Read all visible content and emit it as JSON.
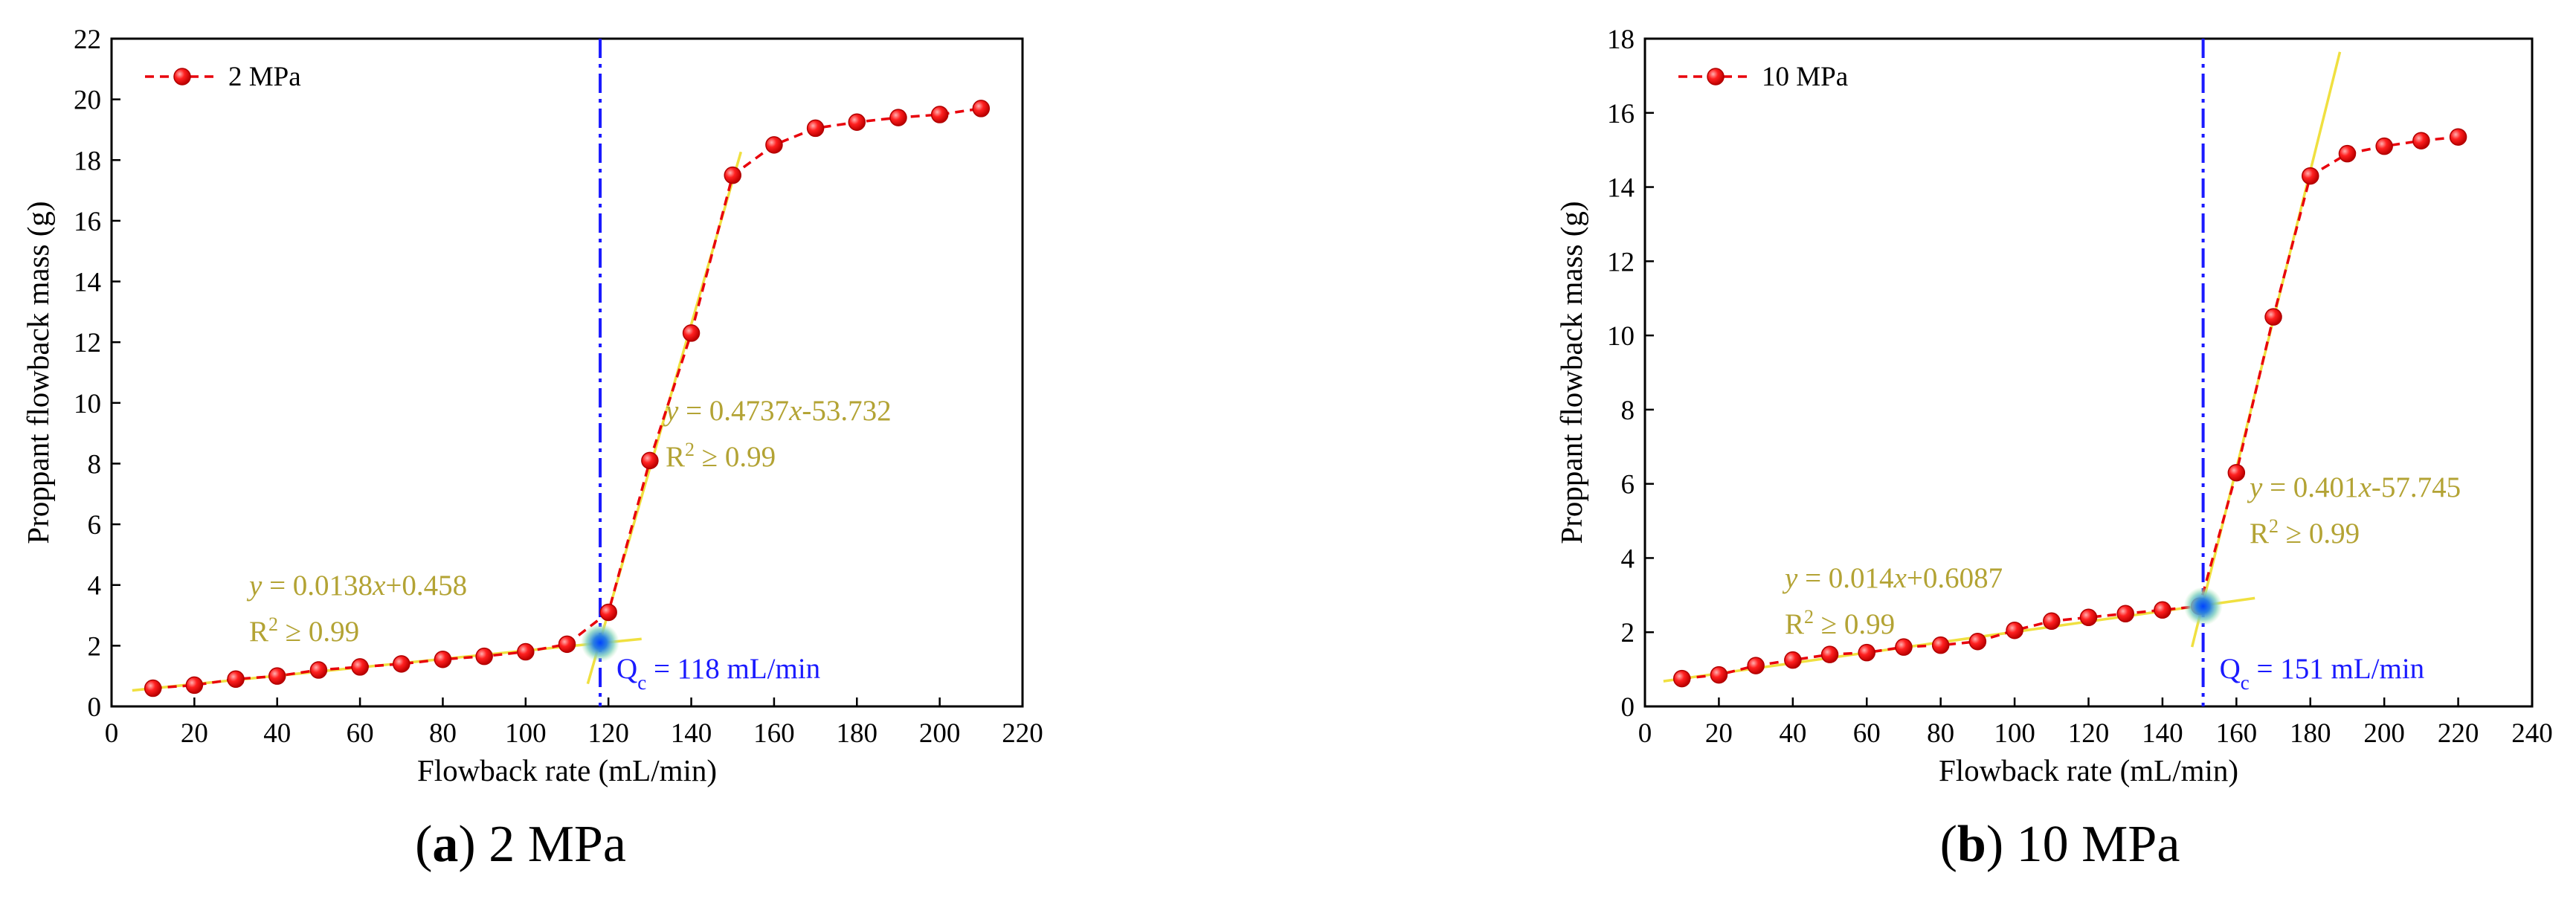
{
  "chart_data": [
    {
      "type": "scatter",
      "panel": "a",
      "caption_letter": "a",
      "caption_text": "2 MPa",
      "xlabel": "Flowback rate (mL/min)",
      "ylabel": "Proppant flowback mass (g)",
      "xlim": [
        0,
        220
      ],
      "ylim": [
        0,
        22
      ],
      "xticks": [
        0,
        20,
        40,
        60,
        80,
        100,
        120,
        140,
        160,
        180,
        200,
        220
      ],
      "yticks": [
        0,
        2,
        4,
        6,
        8,
        10,
        12,
        14,
        16,
        18,
        20,
        22
      ],
      "legend": "top-left",
      "series": [
        {
          "name": "2 MPa",
          "color": "#e8000b",
          "line_style": "dashed",
          "x": [
            10,
            20,
            30,
            40,
            50,
            60,
            70,
            80,
            90,
            100,
            110,
            120,
            130,
            140,
            150,
            160,
            170,
            180,
            190,
            200,
            210
          ],
          "y": [
            0.6,
            0.7,
            0.9,
            1.0,
            1.2,
            1.3,
            1.4,
            1.55,
            1.65,
            1.8,
            2.05,
            3.1,
            8.1,
            12.3,
            17.5,
            18.5,
            19.05,
            19.25,
            19.4,
            19.5,
            19.7
          ]
        }
      ],
      "fit_lines": [
        {
          "slope": 0.0138,
          "intercept": 0.458,
          "x_range": [
            5,
            128
          ],
          "color": "#f0e040",
          "eq_prefix": "y",
          "eq_main": " = 0.0138",
          "eq_var": "x",
          "eq_suffix": "+0.458",
          "r2_base": "R",
          "r2_sup": "2",
          "r2_rest": " ≥ 0.99"
        },
        {
          "slope": 0.4737,
          "intercept": -53.732,
          "x_range": [
            115,
            152
          ],
          "color": "#f0e040",
          "eq_prefix": "y",
          "eq_main": " = 0.4737",
          "eq_var": "x",
          "eq_suffix": "-53.732",
          "r2_base": "R",
          "r2_sup": "2",
          "r2_rest": " ≥ 0.99"
        }
      ],
      "critical_x": 118,
      "critical_y": 2.1,
      "critical_label_base": "Q",
      "critical_label_sub": "c",
      "critical_label_rest": " = 118 mL/min",
      "critical_line_color": "#1a1aff"
    },
    {
      "type": "scatter",
      "panel": "b",
      "caption_letter": "b",
      "caption_text": "10 MPa",
      "xlabel": "Flowback rate (mL/min)",
      "ylabel": "Proppant flowback mass (g)",
      "xlim": [
        0,
        240
      ],
      "ylim": [
        0,
        18
      ],
      "xticks": [
        0,
        20,
        40,
        60,
        80,
        100,
        120,
        140,
        160,
        180,
        200,
        220,
        240
      ],
      "yticks": [
        0,
        2,
        4,
        6,
        8,
        10,
        12,
        14,
        16,
        18
      ],
      "legend": "top-left",
      "series": [
        {
          "name": "10 MPa",
          "color": "#e8000b",
          "line_style": "dashed",
          "x": [
            10,
            20,
            30,
            40,
            50,
            60,
            70,
            80,
            90,
            100,
            110,
            120,
            130,
            140,
            150,
            160,
            170,
            180,
            190,
            200,
            210,
            220
          ],
          "y": [
            0.75,
            0.85,
            1.1,
            1.25,
            1.4,
            1.45,
            1.6,
            1.65,
            1.75,
            2.05,
            2.3,
            2.4,
            2.5,
            2.6,
            2.7,
            6.3,
            10.5,
            14.3,
            14.9,
            15.1,
            15.25,
            15.35
          ]
        }
      ],
      "fit_lines": [
        {
          "slope": 0.014,
          "intercept": 0.6087,
          "x_range": [
            5,
            165
          ],
          "color": "#f0e040",
          "eq_prefix": "y",
          "eq_main": " = 0.014",
          "eq_var": "x",
          "eq_suffix": "+0.6087",
          "r2_base": "R",
          "r2_sup": "2",
          "r2_rest": " ≥ 0.99"
        },
        {
          "slope": 0.401,
          "intercept": -57.745,
          "x_range": [
            148,
            188
          ],
          "color": "#f0e040",
          "eq_prefix": "y",
          "eq_main": " = 0.401",
          "eq_var": "x",
          "eq_suffix": "-57.745",
          "r2_base": "R",
          "r2_sup": "2",
          "r2_rest": " ≥ 0.99"
        }
      ],
      "critical_x": 151,
      "critical_y": 2.7,
      "critical_label_base": "Q",
      "critical_label_sub": "c",
      "critical_label_rest": " = 151 mL/min",
      "critical_line_color": "#1a1aff"
    }
  ]
}
